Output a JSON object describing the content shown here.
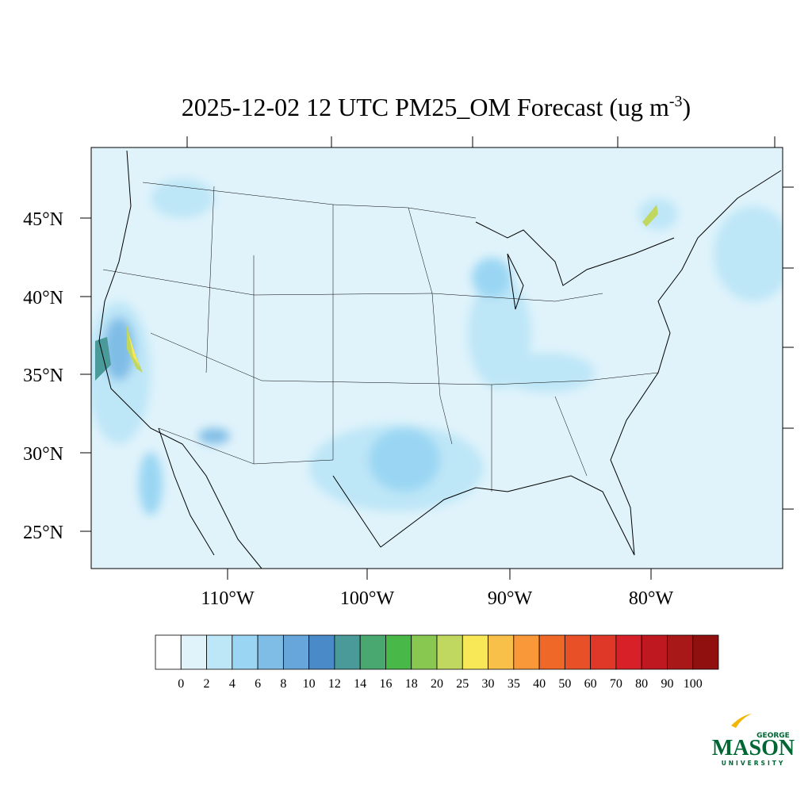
{
  "title": {
    "text": "2025-12-02 12 UTC PM25_OM Forecast (ug m",
    "superscript": "-3",
    "closing": ")"
  },
  "map": {
    "lat_labels": [
      "45°N",
      "40°N",
      "35°N",
      "30°N",
      "25°N"
    ],
    "lon_labels": [
      "110°W",
      "100°W",
      "90°W",
      "80°W"
    ]
  },
  "colorbar": {
    "levels": [
      0,
      2,
      4,
      6,
      8,
      10,
      12,
      14,
      16,
      18,
      20,
      25,
      30,
      35,
      40,
      50,
      60,
      70,
      80,
      90,
      100
    ],
    "colors": [
      "#ffffff",
      "#e0f3fb",
      "#bde6f7",
      "#9ad6f3",
      "#80bde6",
      "#66a6da",
      "#4a8ac8",
      "#4a9a9a",
      "#48a870",
      "#48b848",
      "#88c850",
      "#c0d860",
      "#f8e858",
      "#f8c048",
      "#f89838",
      "#f06828",
      "#e85028",
      "#e03828",
      "#d82028",
      "#c01820",
      "#a81818",
      "#901010"
    ]
  },
  "logo": {
    "top": "GEORGE",
    "main": "MASON",
    "bottom": "UNIVERSITY"
  }
}
